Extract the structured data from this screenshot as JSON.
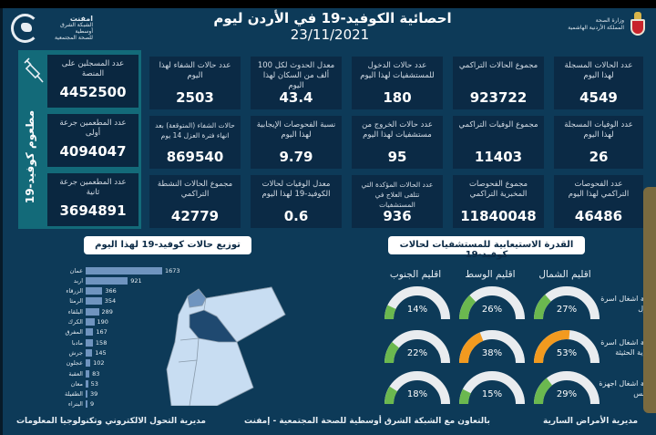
{
  "header": {
    "title": "احصائية الكوفيد-19 في الأردن ليوم",
    "date": "23/11/2021",
    "left_logo": {
      "name": "امفنت",
      "line1": "الشبكة الشرق أوسطية",
      "line2": "للصحة المجتمعية"
    },
    "right_logo": {
      "line1": "وزارة الصحة",
      "line2": "المملكة الأردنية الهاشمية"
    }
  },
  "vaccine": {
    "label": "مطعوم كوفيد-19",
    "icon": "syringe-icon",
    "cards": [
      {
        "label": "عدد المسجلين على المنصة",
        "value": "4452500"
      },
      {
        "label": "عدد المطعمين جرعة أولى",
        "value": "4094047"
      },
      {
        "label": "عدد المطعمين جرعة ثانية",
        "value": "3694891"
      }
    ]
  },
  "stats": {
    "row1": [
      {
        "label": "عدد الحالات المسجلة لهذا اليوم",
        "value": "4549"
      },
      {
        "label": "مجموع الحالات التراكمي",
        "value": "923722"
      },
      {
        "label": "عدد حالات الدخول للمستشفيات لهذا اليوم",
        "value": "180"
      },
      {
        "label": "معدل الحدوث لكل 100 ألف من السكان لهذا اليوم",
        "value": "43.4"
      },
      {
        "label": "عدد حالات الشفاء لهذا اليوم",
        "value": "2503"
      }
    ],
    "row2": [
      {
        "label": "عدد الوفيات المسجلة لهذا اليوم",
        "value": "26"
      },
      {
        "label": "مجموع الوفيات التراكمي",
        "value": "11403"
      },
      {
        "label": "عدد حالات الخروج من مستشفيات لهذا اليوم",
        "value": "95"
      },
      {
        "label": "نسبة الفحوصات الإيجابية لهذا اليوم",
        "value": "9.79"
      },
      {
        "label": "حالات الشفاء (المتوقعة) بعد انهاء فترة العزل 14 يوم",
        "value": "869540"
      }
    ],
    "row3": [
      {
        "label": "عدد الفحوصات التراكمي لهذا اليوم",
        "value": "46486"
      },
      {
        "label": "مجموع الفحوصات المخبرية التراكمي",
        "value": "11840048"
      },
      {
        "label": "عدد الحالات المؤكدة التي تتلقى العلاج في المستشفيات",
        "value": "936"
      },
      {
        "label": "معدل الوفيات لحالات الكوفيد-19 لهذا اليوم",
        "value": "0.6"
      },
      {
        "label": "مجموع الحالات النشطة التراكمي",
        "value": "42779"
      }
    ]
  },
  "distribution": {
    "title": "توزيع حالات كوفيد-19 لهذا اليوم"
  },
  "chart_data": [
    {
      "type": "bar",
      "title": "توزيع حالات كوفيد-19 لهذا اليوم",
      "orientation": "horizontal",
      "categories": [
        "عمان",
        "اربد",
        "الزرقاء",
        "الرمثا",
        "البلقاء",
        "الكرك",
        "المفرق",
        "مادبا",
        "جرش",
        "عجلون",
        "العقبة",
        "معان",
        "الطفيلة",
        "البتراء"
      ],
      "values": [
        1673,
        921,
        366,
        354,
        289,
        190,
        167,
        158,
        145,
        102,
        83,
        53,
        39,
        9
      ],
      "xlabel": "",
      "ylabel": "",
      "grid": false
    },
    {
      "type": "gauge",
      "title": "القدرة الاستيعابية للمستشفيات لحالات كوفيد-19",
      "columns": [
        "اقليم الشمال",
        "اقليم الوسط",
        "اقليم الجنوب"
      ],
      "rows": [
        "نسبة اشغال اسرة العزل",
        "نسبة اشغال اسرة العناية الحثيثة",
        "نسبة اشغال اجهزة التنفس"
      ],
      "series": [
        {
          "name": "اقليم الشمال",
          "values": [
            27,
            53,
            29
          ]
        },
        {
          "name": "اقليم الوسط",
          "values": [
            26,
            38,
            15
          ]
        },
        {
          "name": "اقليم الجنوب",
          "values": [
            14,
            22,
            18
          ]
        }
      ],
      "unit": "%"
    }
  ],
  "capacity": {
    "title": "القدرة الاستيعابية للمستشفيات لحالات كوفيد-19",
    "regions": [
      "اقليم الشمال",
      "اقليم الوسط",
      "اقليم الجنوب"
    ],
    "rows": [
      {
        "label": "نسبة اشغال اسرة العزل",
        "values": [
          27,
          26,
          14
        ]
      },
      {
        "label": "نسبة اشغال اسرة العناية الحثيثة",
        "values": [
          53,
          38,
          22
        ]
      },
      {
        "label": "نسبة اشغال اجهزة التنفس",
        "values": [
          29,
          15,
          18
        ]
      }
    ],
    "colors": {
      "low": "#6bb84f",
      "mid": "#f29a1f",
      "track": "#e9ecef"
    }
  },
  "footer": {
    "left": "مديرية التحول الالكتروني وتكنولوجيا المعلومات",
    "center": "بالتعاون مع الشبكة الشرق أوسطية للصحة المجتمعية - إمفنت",
    "right": "مديرية الأمراض السارية"
  }
}
